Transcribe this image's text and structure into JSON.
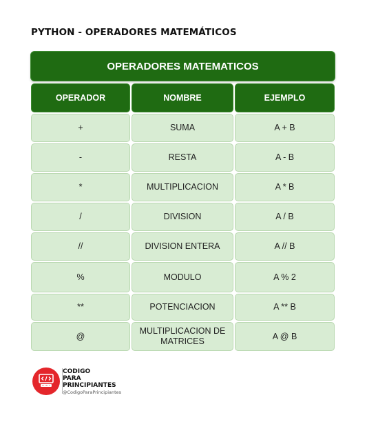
{
  "page_title": "PYTHON - OPERADORES MATEMÁTICOS",
  "table": {
    "title": "OPERADORES MATEMATICOS",
    "columns": [
      "OPERADOR",
      "NOMBRE",
      "EJEMPLO"
    ],
    "rows": [
      [
        "+",
        "SUMA",
        "A + B"
      ],
      [
        "-",
        "RESTA",
        "A - B"
      ],
      [
        "*",
        "MULTIPLICACION",
        "A * B"
      ],
      [
        "/",
        "DIVISION",
        "A / B"
      ],
      [
        "//",
        "DIVISION ENTERA",
        "A // B"
      ],
      [
        "%",
        "MODULO",
        "A % 2"
      ],
      [
        "**",
        "POTENCIACION",
        "A ** B"
      ],
      [
        "@",
        "MULTIPLICACION DE MATRICES",
        "A @ B"
      ]
    ]
  },
  "brand": {
    "line1": "CODIGO",
    "line2": "PARA",
    "line3": "PRINCIPIANTES",
    "handle": "@CodigoParaPrincipiantes",
    "logo_icon": "code-screen-icon",
    "color": "#e4262b"
  },
  "colors": {
    "header_green": "#1f6b12",
    "cell_green": "#d8ecd3"
  }
}
